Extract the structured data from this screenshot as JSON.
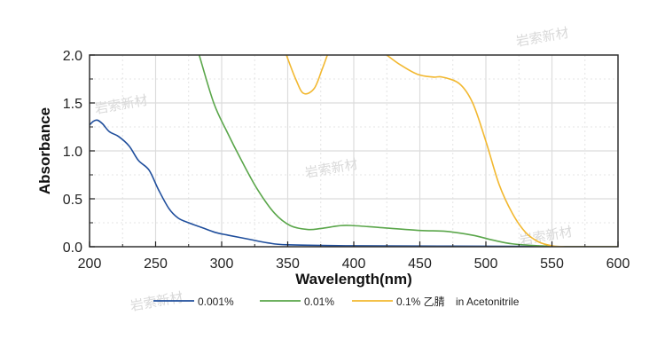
{
  "chart_data": {
    "type": "line",
    "title": "",
    "xlabel": "Wavelength(nm)",
    "ylabel": "Absorbance",
    "xlim": [
      200,
      600
    ],
    "ylim": [
      0,
      2.0
    ],
    "xticks": [
      200,
      250,
      300,
      350,
      400,
      450,
      500,
      550,
      600
    ],
    "xtick_labels": [
      "200",
      "250",
      "300",
      "350",
      "400",
      "450",
      "500",
      "550",
      "600"
    ],
    "yticks": [
      0.0,
      0.5,
      1.0,
      1.5,
      2.0
    ],
    "ytick_labels": [
      "0.0",
      "0.5",
      "1.0",
      "1.5",
      "2.0"
    ],
    "grid": true,
    "legend_position": "bottom",
    "legend_suffix": "in Acetonitrile",
    "series": [
      {
        "name": "0.001%",
        "color": "#1f4e9c",
        "x": [
          200,
          203,
          206,
          210,
          215,
          222,
          230,
          237,
          245,
          252,
          260,
          267,
          275,
          285,
          295,
          305,
          320,
          335,
          350,
          400,
          500,
          600
        ],
        "y": [
          1.27,
          1.31,
          1.32,
          1.28,
          1.2,
          1.15,
          1.05,
          0.9,
          0.8,
          0.6,
          0.4,
          0.3,
          0.25,
          0.2,
          0.15,
          0.12,
          0.08,
          0.04,
          0.02,
          0.01,
          0.005,
          0.0
        ]
      },
      {
        "name": "0.01%",
        "color": "#5aa64a",
        "x": [
          283,
          294,
          304,
          315,
          327,
          340,
          352,
          365,
          375,
          390,
          400,
          420,
          450,
          470,
          490,
          505,
          520,
          540,
          560,
          600
        ],
        "y": [
          2.0,
          1.5,
          1.2,
          0.9,
          0.6,
          0.35,
          0.22,
          0.18,
          0.19,
          0.22,
          0.22,
          0.2,
          0.17,
          0.16,
          0.12,
          0.07,
          0.03,
          0.01,
          0.0,
          0.0
        ]
      },
      {
        "name": "0.1% 乙腈",
        "color": "#f2b830",
        "segments": [
          {
            "x": [
              349,
              356,
              362,
              370,
              376,
              380
            ],
            "y": [
              2.0,
              1.75,
              1.6,
              1.65,
              1.85,
              2.0
            ]
          },
          {
            "x": [
              425,
              435,
              448,
              460,
              467,
              480,
              490,
              500,
              510,
              520,
              530,
              540,
              550,
              560,
              600
            ],
            "y": [
              2.0,
              1.9,
              1.8,
              1.77,
              1.77,
              1.7,
              1.5,
              1.1,
              0.65,
              0.35,
              0.15,
              0.05,
              0.01,
              0.0,
              0.0
            ]
          }
        ]
      }
    ],
    "watermarks": [
      "岩索新材",
      "岩索新材",
      "岩索新材",
      "岩索新材",
      "岩索新材"
    ]
  }
}
